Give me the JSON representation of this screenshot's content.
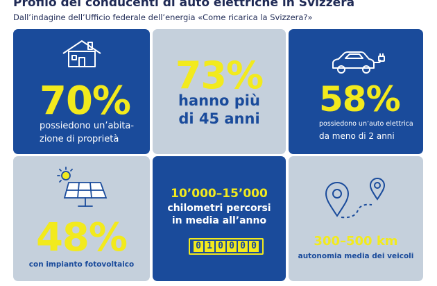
{
  "header": {
    "title": "Profilo dei conducenti di auto elettriche in Svizzera",
    "subtitle": "Dall’indagine dell’Ufficio federale dell’energia «Come ricarica la Svizzera?»"
  },
  "tiles": {
    "home": {
      "value": "70%",
      "line1": "possiedono un’abita-",
      "line2": "zione di proprietà",
      "icon": "house-icon"
    },
    "age": {
      "value": "73%",
      "line1": "hanno più",
      "line2": "di 45 anni"
    },
    "car": {
      "value": "58%",
      "line1": "possiedono un’auto elettrica",
      "line2": "da meno di 2 anni",
      "icon": "electric-car-icon"
    },
    "solar": {
      "value": "48%",
      "line1": "con impianto fotovoltaico",
      "icon": "solar-panel-icon"
    },
    "distance": {
      "value": "10’000–15’000",
      "line1": "chilometri percorsi",
      "line2": "in media all’anno",
      "odometer": [
        "0",
        "1",
        "0",
        "0",
        "0",
        "0"
      ],
      "icon": "odometer-icon"
    },
    "range": {
      "value": "300–500 km",
      "line1": "autonomia media dei veicoli",
      "icon": "map-route-icon"
    }
  },
  "colors": {
    "blue": "#1a4b9b",
    "grey": "#c5d0dc",
    "yellow": "#f2ea1d",
    "navy_text": "#1f2a55"
  }
}
